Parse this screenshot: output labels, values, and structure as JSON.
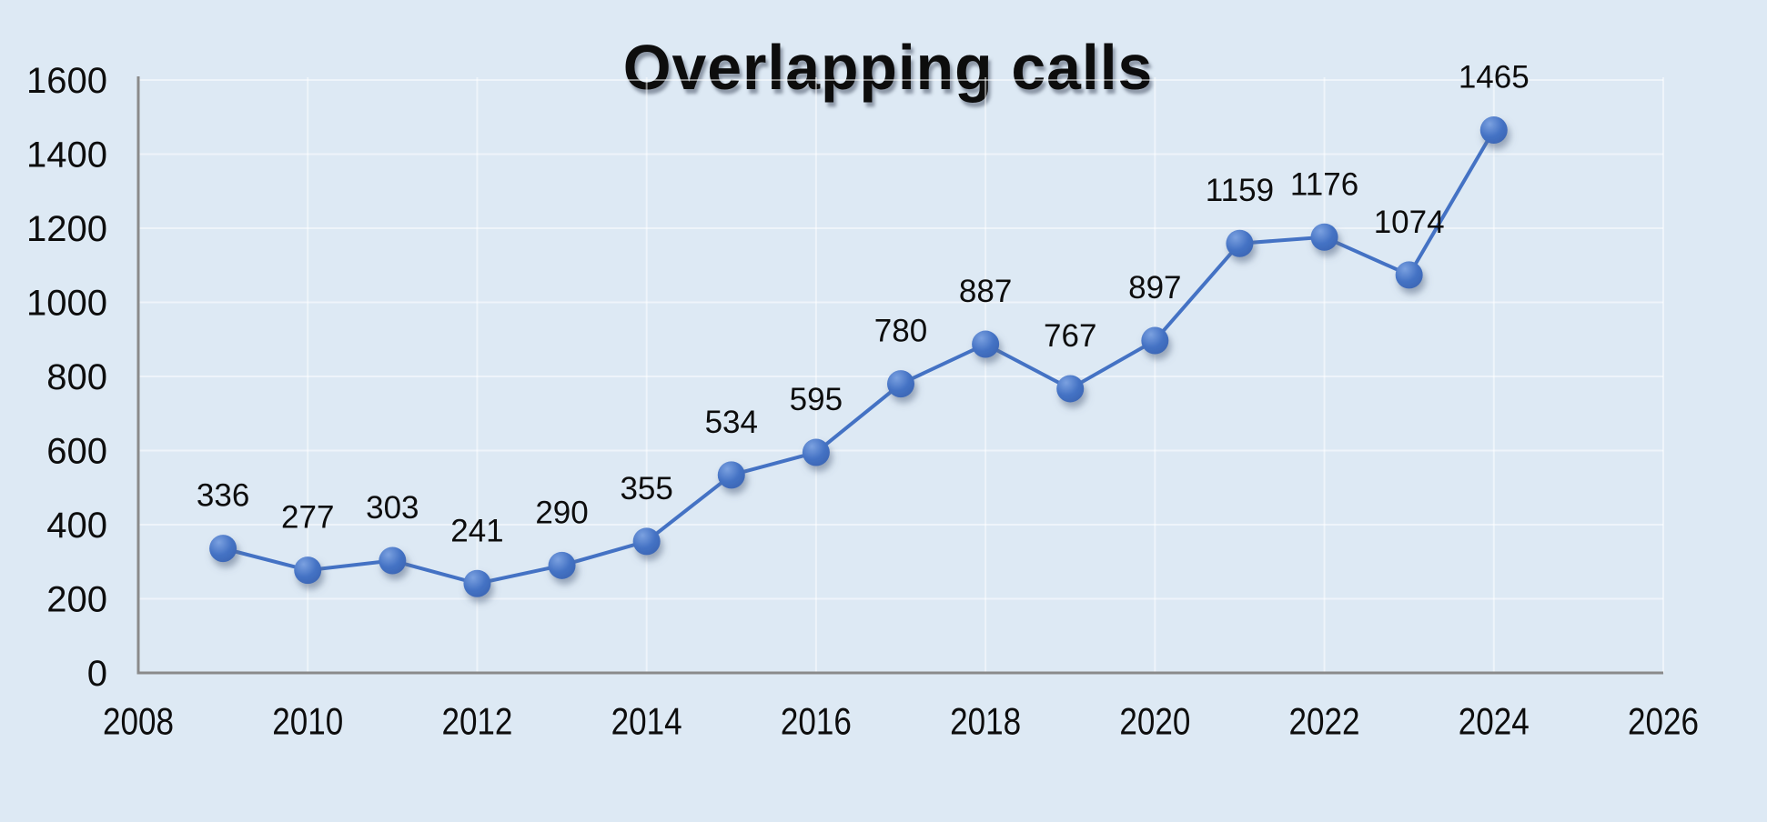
{
  "chart_data": {
    "type": "line",
    "title": "Overlapping calls",
    "series_name": "Overlapping calls",
    "x": [
      2009,
      2010,
      2011,
      2012,
      2013,
      2014,
      2015,
      2016,
      2017,
      2018,
      2019,
      2020,
      2021,
      2022,
      2023,
      2024
    ],
    "values": [
      336,
      277,
      303,
      241,
      290,
      355,
      534,
      595,
      780,
      887,
      767,
      897,
      1159,
      1176,
      1074,
      1465
    ],
    "data_labels_visible": true,
    "xlabel": "",
    "ylabel": "",
    "xlim": [
      2008,
      2026
    ],
    "ylim": [
      0,
      1600
    ],
    "x_ticks": [
      2008,
      2010,
      2012,
      2014,
      2016,
      2018,
      2020,
      2022,
      2024,
      2026
    ],
    "y_ticks": [
      0,
      200,
      400,
      600,
      800,
      1000,
      1200,
      1400,
      1600
    ],
    "grid": true,
    "legend_position": "none",
    "marker_shape": "circle",
    "colors": {
      "line": "#4472c4",
      "marker": "#4472c4",
      "marker_highlight": "#7ba1e0",
      "marker_dark": "#3a64b2",
      "background": "#dde9f4",
      "gridline": "#ffffff",
      "axis": "#8a8a8a",
      "text": "#0d0d0d"
    }
  }
}
